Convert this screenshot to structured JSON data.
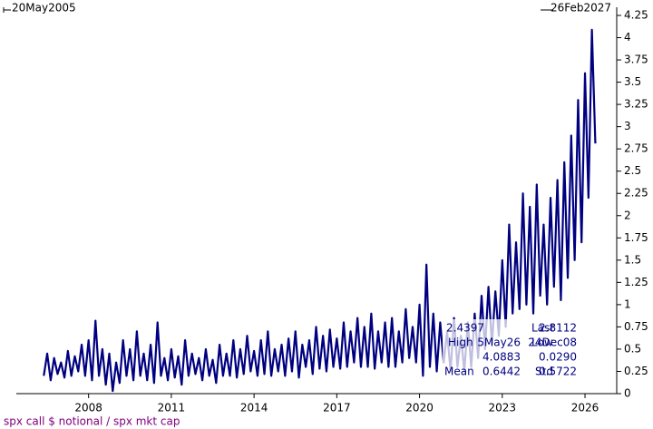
{
  "chart_data": {
    "type": "line",
    "range_start": "20May2005",
    "range_end": "26Feb2027",
    "footer": "spx call $ notional / spx mkt cap",
    "xlim": [
      2005.38,
      2027.15
    ],
    "xticks": [
      2008,
      2011,
      2014,
      2017,
      2020,
      2023,
      2026
    ],
    "ylim": [
      0,
      4.25
    ],
    "yticks": [
      0,
      0.25,
      0.5,
      0.75,
      1,
      1.25,
      1.5,
      1.75,
      2,
      2.25,
      2.5,
      2.75,
      3,
      3.25,
      3.5,
      3.75,
      4,
      4.25
    ],
    "x": [
      2006.375,
      2006.5,
      2006.625,
      2006.75,
      2006.875,
      2007,
      2007.125,
      2007.25,
      2007.375,
      2007.5,
      2007.625,
      2007.75,
      2007.875,
      2008,
      2008.125,
      2008.25,
      2008.375,
      2008.5,
      2008.625,
      2008.75,
      2008.875,
      2009,
      2009.125,
      2009.25,
      2009.375,
      2009.5,
      2009.625,
      2009.75,
      2009.875,
      2010,
      2010.125,
      2010.25,
      2010.375,
      2010.5,
      2010.625,
      2010.75,
      2010.875,
      2011,
      2011.125,
      2011.25,
      2011.375,
      2011.5,
      2011.625,
      2011.75,
      2011.875,
      2012,
      2012.125,
      2012.25,
      2012.375,
      2012.5,
      2012.625,
      2012.75,
      2012.875,
      2013,
      2013.125,
      2013.25,
      2013.375,
      2013.5,
      2013.625,
      2013.75,
      2013.875,
      2014,
      2014.125,
      2014.25,
      2014.375,
      2014.5,
      2014.625,
      2014.75,
      2014.875,
      2015,
      2015.125,
      2015.25,
      2015.375,
      2015.5,
      2015.625,
      2015.75,
      2015.875,
      2016,
      2016.125,
      2016.25,
      2016.375,
      2016.5,
      2016.625,
      2016.75,
      2016.875,
      2017,
      2017.125,
      2017.25,
      2017.375,
      2017.5,
      2017.625,
      2017.75,
      2017.875,
      2018,
      2018.125,
      2018.25,
      2018.375,
      2018.5,
      2018.625,
      2018.75,
      2018.875,
      2019,
      2019.125,
      2019.25,
      2019.375,
      2019.5,
      2019.625,
      2019.75,
      2019.875,
      2020,
      2020.125,
      2020.25,
      2020.375,
      2020.5,
      2020.625,
      2020.75,
      2020.875,
      2021,
      2021.125,
      2021.25,
      2021.375,
      2021.5,
      2021.625,
      2021.75,
      2021.875,
      2022,
      2022.125,
      2022.25,
      2022.375,
      2022.5,
      2022.625,
      2022.75,
      2022.875,
      2023,
      2023.125,
      2023.25,
      2023.375,
      2023.5,
      2023.625,
      2023.75,
      2023.875,
      2024,
      2024.125,
      2024.25,
      2024.375,
      2024.5,
      2024.625,
      2024.75,
      2024.875,
      2025,
      2025.125,
      2025.25,
      2025.375,
      2025.5,
      2025.625,
      2025.75,
      2025.875,
      2026,
      2026.125,
      2026.25,
      2026.375
    ],
    "series": [
      {
        "color": "#000080",
        "values": [
          0.2,
          0.45,
          0.15,
          0.4,
          0.22,
          0.35,
          0.18,
          0.48,
          0.2,
          0.42,
          0.25,
          0.55,
          0.2,
          0.6,
          0.15,
          0.82,
          0.2,
          0.5,
          0.1,
          0.45,
          0.029,
          0.35,
          0.12,
          0.6,
          0.2,
          0.5,
          0.15,
          0.7,
          0.2,
          0.45,
          0.15,
          0.55,
          0.12,
          0.8,
          0.2,
          0.4,
          0.15,
          0.5,
          0.18,
          0.42,
          0.1,
          0.6,
          0.2,
          0.45,
          0.22,
          0.4,
          0.15,
          0.5,
          0.2,
          0.38,
          0.12,
          0.55,
          0.2,
          0.45,
          0.2,
          0.6,
          0.18,
          0.5,
          0.22,
          0.65,
          0.25,
          0.48,
          0.2,
          0.6,
          0.22,
          0.7,
          0.2,
          0.5,
          0.25,
          0.55,
          0.2,
          0.62,
          0.25,
          0.7,
          0.18,
          0.55,
          0.3,
          0.6,
          0.22,
          0.75,
          0.28,
          0.65,
          0.25,
          0.72,
          0.3,
          0.62,
          0.28,
          0.8,
          0.3,
          0.7,
          0.35,
          0.85,
          0.3,
          0.75,
          0.3,
          0.9,
          0.28,
          0.7,
          0.35,
          0.8,
          0.3,
          0.85,
          0.3,
          0.7,
          0.35,
          0.95,
          0.4,
          0.75,
          0.35,
          1.0,
          0.2,
          1.45,
          0.3,
          0.9,
          0.25,
          0.8,
          0.35,
          0.7,
          0.25,
          0.85,
          0.3,
          0.65,
          0.25,
          0.8,
          0.3,
          0.9,
          0.4,
          1.1,
          0.5,
          1.2,
          0.55,
          1.15,
          0.65,
          1.5,
          0.75,
          1.9,
          0.9,
          1.7,
          0.95,
          2.25,
          1.0,
          2.1,
          0.9,
          2.35,
          1.1,
          1.9,
          1.0,
          2.2,
          1.2,
          2.4,
          1.05,
          2.6,
          1.3,
          2.9,
          1.5,
          3.3,
          1.7,
          3.6,
          2.2,
          4.0883,
          2.8112
        ]
      }
    ]
  },
  "stats": {
    "rows": [
      [
        "2.4397",
        "Last",
        "2.8112"
      ],
      [
        "High",
        "5May26",
        "Low",
        "24Dec08"
      ],
      [
        "4.0883",
        "0.0290"
      ],
      [
        "Mean",
        "0.6442",
        "Std",
        "0.5722"
      ]
    ]
  }
}
